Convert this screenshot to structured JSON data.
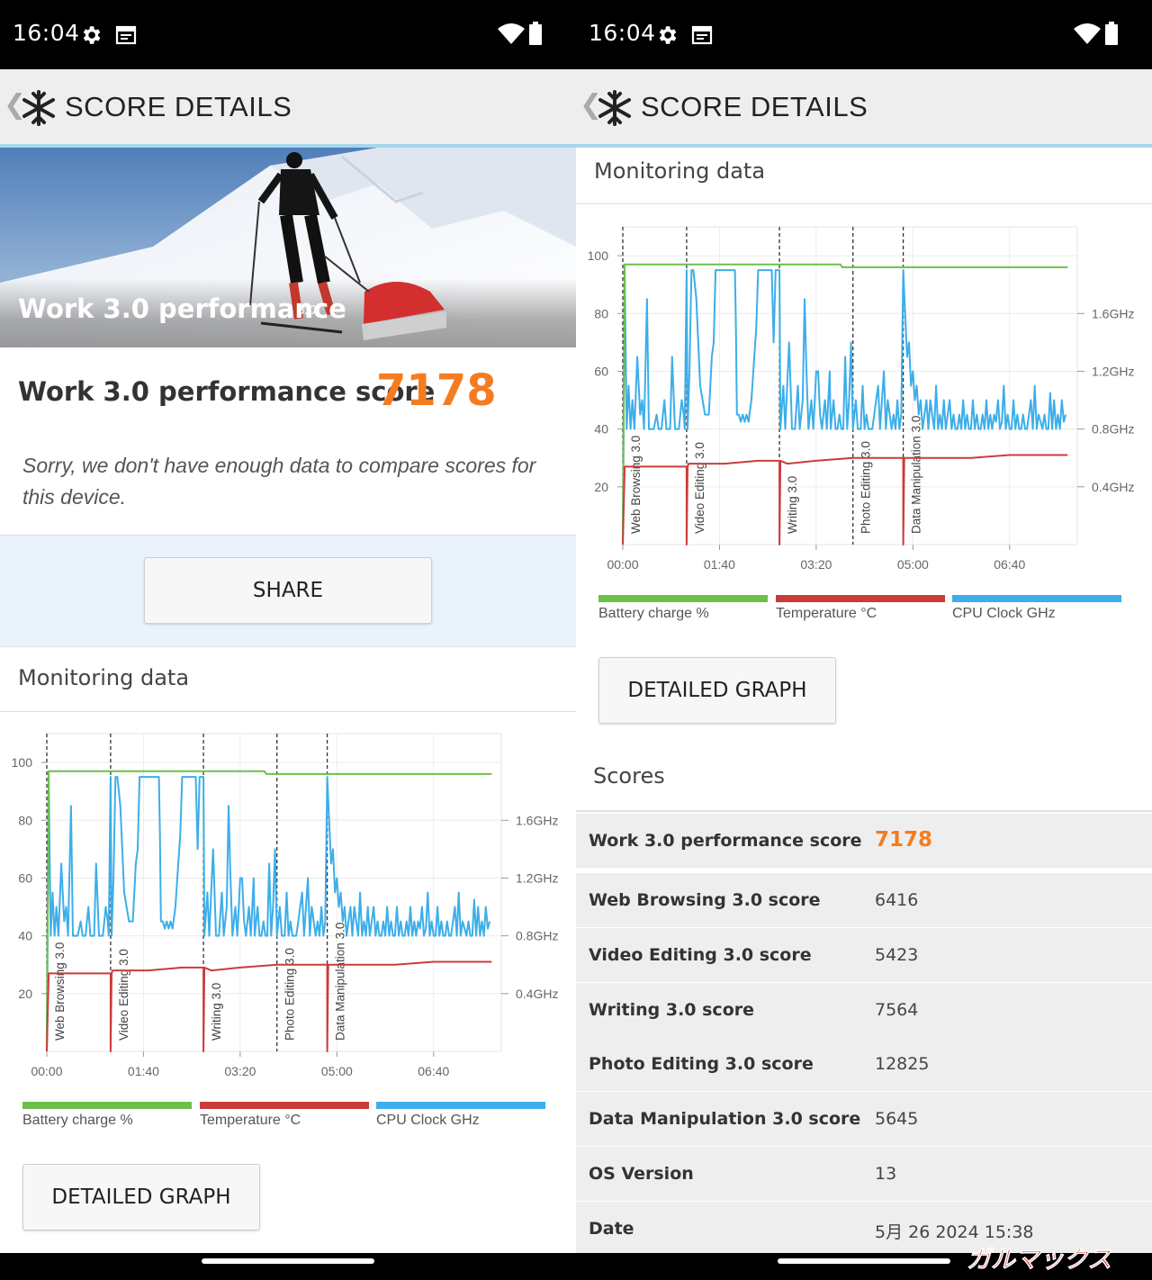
{
  "status": {
    "time": "16:04",
    "icons": [
      "gear-icon",
      "calendar-icon",
      "wifi-icon",
      "battery-icon"
    ]
  },
  "appbar": {
    "title": "SCORE DETAILS",
    "icons": [
      "back-chevron-icon",
      "snowflake-logo-icon"
    ]
  },
  "hero": {
    "title": "Work 3.0 performance",
    "version": "3.0"
  },
  "score": {
    "label": "Work 3.0 performance score",
    "value": "7178"
  },
  "compare_message": "Sorry, we don't have enough data to compare scores for this device.",
  "buttons": {
    "share": "SHARE",
    "detailed_graph": "DETAILED GRAPH"
  },
  "monitoring": {
    "title": "Monitoring data"
  },
  "legend": [
    {
      "label": "Battery charge %",
      "color": "#6cc04a"
    },
    {
      "label": "Temperature °C",
      "color": "#cc3b3b"
    },
    {
      "label": "CPU Clock GHz",
      "color": "#3daee9"
    }
  ],
  "chart_data": {
    "type": "line",
    "x_ticks": [
      "00:00",
      "01:40",
      "03:20",
      "05:00",
      "06:40"
    ],
    "y_left_ticks": [
      "20",
      "40",
      "60",
      "80",
      "100"
    ],
    "y_right_ticks": [
      "0.4GHz",
      "0.8GHz",
      "1.2GHz",
      "1.6GHz"
    ],
    "ylim": [
      0,
      110
    ],
    "y_right_lim": [
      0,
      2.2
    ],
    "sections": [
      {
        "name": "Web Browsing 3.0",
        "start_min": 0
      },
      {
        "name": "Video Editing 3.0",
        "start_min": 66
      },
      {
        "name": "Writing 3.0",
        "start_min": 162
      },
      {
        "name": "Photo Editing 3.0",
        "start_min": 238
      },
      {
        "name": "Data Manipulation 3.0",
        "start_min": 290
      }
    ],
    "series": [
      {
        "name": "Battery charge %",
        "axis": "left",
        "points": [
          [
            0,
            0
          ],
          [
            2,
            97
          ],
          [
            225,
            97
          ],
          [
            227,
            96
          ],
          [
            460,
            96
          ]
        ]
      },
      {
        "name": "Temperature °C",
        "axis": "left",
        "points": [
          [
            0,
            0
          ],
          [
            2,
            27
          ],
          [
            66,
            27
          ],
          [
            66,
            0
          ],
          [
            67,
            27
          ],
          [
            68,
            28
          ],
          [
            105,
            28
          ],
          [
            140,
            29
          ],
          [
            162,
            29
          ],
          [
            162,
            0
          ],
          [
            163,
            29
          ],
          [
            170,
            28
          ],
          [
            200,
            29
          ],
          [
            238,
            30
          ],
          [
            290,
            30
          ],
          [
            290,
            0
          ],
          [
            291,
            30
          ],
          [
            300,
            30
          ],
          [
            360,
            30
          ],
          [
            400,
            31
          ],
          [
            460,
            31
          ]
        ]
      },
      {
        "name": "CPU Clock GHz",
        "axis": "right",
        "points": [
          [
            0,
            0
          ],
          [
            2,
            1.9
          ],
          [
            4,
            0.8
          ],
          [
            6,
            1.1
          ],
          [
            8,
            0.8
          ],
          [
            10,
            1.0
          ],
          [
            12,
            0.8
          ],
          [
            15,
            1.3
          ],
          [
            18,
            0.9
          ],
          [
            20,
            1.0
          ],
          [
            22,
            0.8
          ],
          [
            25,
            1.7
          ],
          [
            27,
            0.8
          ],
          [
            32,
            0.8
          ],
          [
            35,
            0.9
          ],
          [
            37,
            0.8
          ],
          [
            40,
            0.8
          ],
          [
            43,
            1.0
          ],
          [
            45,
            0.8
          ],
          [
            49,
            0.8
          ],
          [
            51,
            1.3
          ],
          [
            54,
            0.8
          ],
          [
            58,
            0.8
          ],
          [
            61,
            1.0
          ],
          [
            63,
            0.9
          ],
          [
            64,
            0.8
          ],
          [
            66,
            1.9
          ],
          [
            67,
            0.8
          ],
          [
            69,
            1.2
          ],
          [
            71,
            1.9
          ],
          [
            73,
            1.9
          ],
          [
            76,
            1.7
          ],
          [
            80,
            1.1
          ],
          [
            85,
            0.9
          ],
          [
            89,
            0.9
          ],
          [
            92,
            1.3
          ],
          [
            94,
            1.4
          ],
          [
            96,
            1.9
          ],
          [
            116,
            1.9
          ],
          [
            117,
            1.5
          ],
          [
            118,
            0.9
          ],
          [
            120,
            0.9
          ],
          [
            122,
            0.85
          ],
          [
            124,
            0.9
          ],
          [
            126,
            0.85
          ],
          [
            128,
            0.9
          ],
          [
            130,
            0.85
          ],
          [
            133,
            1.0
          ],
          [
            136,
            1.3
          ],
          [
            138,
            1.5
          ],
          [
            140,
            1.9
          ],
          [
            154,
            1.9
          ],
          [
            156,
            1.4
          ],
          [
            158,
            1.9
          ],
          [
            160,
            1.9
          ],
          [
            162,
            1.9
          ],
          [
            163,
            0.8
          ],
          [
            166,
            1.1
          ],
          [
            168,
            0.8
          ],
          [
            172,
            1.4
          ],
          [
            175,
            0.8
          ],
          [
            178,
            0.8
          ],
          [
            181,
            1.1
          ],
          [
            183,
            0.8
          ],
          [
            186,
            1.0
          ],
          [
            188,
            1.7
          ],
          [
            190,
            1.2
          ],
          [
            192,
            0.8
          ],
          [
            195,
            1.0
          ],
          [
            197,
            0.8
          ],
          [
            200,
            1.2
          ],
          [
            202,
            1.2
          ],
          [
            204,
            0.9
          ],
          [
            206,
            0.8
          ],
          [
            209,
            1.0
          ],
          [
            211,
            0.8
          ],
          [
            214,
            1.2
          ],
          [
            215,
            0.8
          ],
          [
            218,
            1.0
          ],
          [
            220,
            0.8
          ],
          [
            222,
            0.8
          ],
          [
            224,
            0.9
          ],
          [
            226,
            0.8
          ],
          [
            228,
            0.8
          ],
          [
            230,
            1.3
          ],
          [
            232,
            0.8
          ],
          [
            234,
            1.0
          ],
          [
            236,
            1.4
          ],
          [
            238,
            0.8
          ],
          [
            241,
            1.0
          ],
          [
            243,
            0.8
          ],
          [
            246,
            0.8
          ],
          [
            248,
            1.1
          ],
          [
            250,
            0.8
          ],
          [
            252,
            0.9
          ],
          [
            254,
            0.8
          ],
          [
            256,
            0.8
          ],
          [
            258,
            0.8
          ],
          [
            260,
            0.9
          ],
          [
            262,
            1.0
          ],
          [
            264,
            1.1
          ],
          [
            266,
            0.8
          ],
          [
            268,
            1.0
          ],
          [
            270,
            1.2
          ],
          [
            272,
            0.8
          ],
          [
            274,
            1.0
          ],
          [
            276,
            0.9
          ],
          [
            278,
            0.8
          ],
          [
            280,
            0.9
          ],
          [
            282,
            0.8
          ],
          [
            284,
            1.0
          ],
          [
            286,
            0.8
          ],
          [
            288,
            0.9
          ],
          [
            290,
            1.9
          ],
          [
            292,
            1.6
          ],
          [
            294,
            1.3
          ],
          [
            296,
            1.4
          ],
          [
            298,
            1.1
          ],
          [
            300,
            1.2
          ],
          [
            302,
            1.0
          ],
          [
            304,
            1.1
          ],
          [
            306,
            0.9
          ],
          [
            308,
            1.0
          ],
          [
            310,
            0.8
          ],
          [
            312,
            0.9
          ],
          [
            314,
            1.0
          ],
          [
            316,
            0.8
          ],
          [
            318,
            1.0
          ],
          [
            320,
            0.9
          ],
          [
            322,
            0.8
          ],
          [
            324,
            1.1
          ],
          [
            326,
            0.8
          ],
          [
            328,
            0.9
          ],
          [
            330,
            0.8
          ],
          [
            332,
            1.0
          ],
          [
            334,
            0.8
          ],
          [
            336,
            0.9
          ],
          [
            338,
            1.0
          ],
          [
            340,
            0.8
          ],
          [
            342,
            0.9
          ],
          [
            344,
            0.8
          ],
          [
            346,
            0.8
          ],
          [
            348,
            0.9
          ],
          [
            350,
            0.8
          ],
          [
            352,
            1.0
          ],
          [
            354,
            0.8
          ],
          [
            356,
            0.9
          ],
          [
            358,
            0.8
          ],
          [
            360,
            0.8
          ],
          [
            362,
            1.0
          ],
          [
            364,
            0.8
          ],
          [
            366,
            0.9
          ],
          [
            368,
            0.8
          ],
          [
            370,
            0.8
          ],
          [
            372,
            0.9
          ],
          [
            374,
            0.8
          ],
          [
            376,
            1.0
          ],
          [
            378,
            0.8
          ],
          [
            380,
            0.9
          ],
          [
            382,
            0.8
          ],
          [
            384,
            0.9
          ],
          [
            386,
            0.85
          ],
          [
            388,
            1.0
          ],
          [
            390,
            0.8
          ],
          [
            392,
            0.85
          ],
          [
            394,
            1.1
          ],
          [
            396,
            0.8
          ],
          [
            398,
            0.9
          ],
          [
            400,
            0.8
          ],
          [
            402,
            0.8
          ],
          [
            404,
            1.0
          ],
          [
            406,
            0.8
          ],
          [
            408,
            0.9
          ],
          [
            410,
            0.8
          ],
          [
            412,
            0.8
          ],
          [
            414,
            0.9
          ],
          [
            416,
            0.8
          ],
          [
            418,
            0.8
          ],
          [
            420,
            0.9
          ],
          [
            422,
            1.0
          ],
          [
            424,
            0.8
          ],
          [
            426,
            1.1
          ],
          [
            428,
            0.8
          ],
          [
            430,
            0.9
          ],
          [
            432,
            0.85
          ],
          [
            434,
            0.8
          ],
          [
            436,
            0.9
          ],
          [
            438,
            0.8
          ],
          [
            440,
            0.8
          ],
          [
            442,
            1.05
          ],
          [
            444,
            0.8
          ],
          [
            446,
            1.0
          ],
          [
            448,
            0.8
          ],
          [
            450,
            0.9
          ],
          [
            452,
            0.8
          ],
          [
            454,
            1.0
          ],
          [
            456,
            0.85
          ],
          [
            458,
            0.9
          ]
        ]
      }
    ]
  },
  "scores": {
    "title": "Scores",
    "rows": [
      {
        "label": "Work 3.0 performance score",
        "value": "7178"
      },
      {
        "label": "Web Browsing 3.0 score",
        "value": "6416"
      },
      {
        "label": "Video Editing 3.0 score",
        "value": "5423"
      },
      {
        "label": "Writing 3.0 score",
        "value": "7564"
      },
      {
        "label": "Photo Editing 3.0 score",
        "value": "12825"
      },
      {
        "label": "Data Manipulation 3.0 score",
        "value": "5645"
      },
      {
        "label": "OS Version",
        "value": "13"
      },
      {
        "label": "Date",
        "value": "5月 26 2024 15:38"
      }
    ]
  },
  "watermark": "ガルマックス"
}
